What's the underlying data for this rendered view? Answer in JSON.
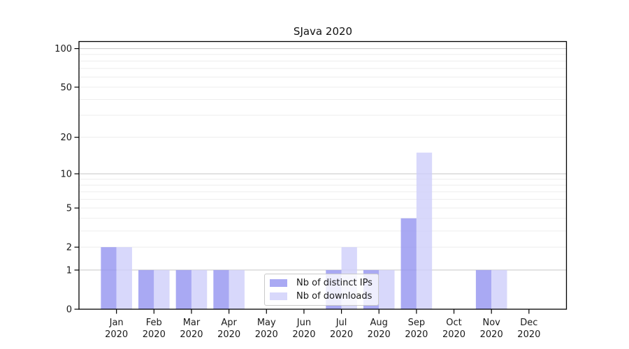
{
  "page": {
    "background": "#ffffff"
  },
  "chart_data": {
    "type": "bar",
    "title": "SJava 2020",
    "categories": [
      "Jan 2020",
      "Feb 2020",
      "Mar 2020",
      "Apr 2020",
      "May 2020",
      "Jun 2020",
      "Jul 2020",
      "Aug 2020",
      "Sep 2020",
      "Oct 2020",
      "Nov 2020",
      "Dec 2020"
    ],
    "category_line1": [
      "Jan",
      "Feb",
      "Mar",
      "Apr",
      "May",
      "Jun",
      "Jul",
      "Aug",
      "Sep",
      "Oct",
      "Nov",
      "Dec"
    ],
    "category_line2": "2020",
    "series": [
      {
        "name": "Nb of distinct IPs",
        "color": "rgba(148,148,240,0.8)",
        "values": [
          2,
          1,
          1,
          1,
          0,
          0,
          1,
          1,
          4,
          0,
          1,
          0
        ]
      },
      {
        "name": "Nb of downloads",
        "color": "rgba(206,206,250,0.8)",
        "values": [
          2,
          1,
          1,
          1,
          0,
          0,
          2,
          1,
          15,
          0,
          1,
          0
        ]
      }
    ],
    "y_axis": {
      "scale": "log1p",
      "tick_labels": [
        "0",
        "1",
        "2",
        "5",
        "10",
        "20",
        "50",
        "100"
      ],
      "tick_values": [
        0,
        1,
        2,
        5,
        10,
        20,
        50,
        100
      ],
      "major_gridlines": [
        1,
        10,
        100
      ],
      "minor_gridlines": [
        2,
        3,
        4,
        5,
        6,
        7,
        8,
        9,
        20,
        30,
        40,
        50,
        60,
        70,
        80,
        90
      ],
      "ylim": [
        0,
        113
      ]
    },
    "xlabel": "",
    "ylabel": "",
    "grid": true,
    "legend_position": "lower center"
  },
  "style_colors": {
    "major_grid": "#c6c6c6",
    "minor_grid": "#ededed",
    "axis": "#000000",
    "tick_text": "#1a1a1a",
    "legend_border": "#c9c9c9",
    "legend_bg": "rgba(255,255,255,0.8)"
  }
}
